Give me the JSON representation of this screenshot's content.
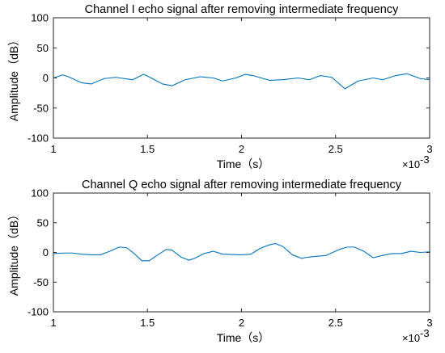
{
  "chart_data": [
    {
      "type": "line",
      "title": "Channel I echo signal after removing intermediate frequency",
      "xlabel": "Time（s）",
      "ylabel": "Amplitude（dB）",
      "x_exponent_label": "×10",
      "x_exponent_power": "-3",
      "xlim": [
        1,
        3
      ],
      "ylim": [
        -100,
        100
      ],
      "xticks": [
        1,
        1.5,
        2,
        2.5,
        3
      ],
      "xtick_labels": [
        "1",
        "1.5",
        "2",
        "2.5",
        "3"
      ],
      "yticks": [
        100,
        50,
        0,
        -50,
        -100
      ],
      "ytick_labels": [
        "100",
        "50",
        "0",
        "-50",
        "-100"
      ],
      "grid": false,
      "color": "#0072BD",
      "series": [
        {
          "x": [
            1.0,
            1.05,
            1.08,
            1.15,
            1.2,
            1.27,
            1.33,
            1.42,
            1.48,
            1.52,
            1.58,
            1.63,
            1.7,
            1.78,
            1.85,
            1.9,
            1.97,
            2.02,
            2.06,
            2.15,
            2.22,
            2.3,
            2.36,
            2.42,
            2.48,
            2.55,
            2.62,
            2.7,
            2.75,
            2.82,
            2.88,
            2.95,
            3.0
          ],
          "y": [
            0,
            5,
            2,
            -8,
            -10,
            -1,
            1,
            -3,
            6,
            0,
            -10,
            -13,
            -3,
            2,
            0,
            -5,
            0,
            6,
            4,
            -4,
            -3,
            0,
            -3,
            4,
            1,
            -18,
            -5,
            0,
            -3,
            4,
            7,
            -1,
            -3
          ]
        }
      ]
    },
    {
      "type": "line",
      "title": "Channel Q echo signal after removing intermediate frequency",
      "xlabel": "Time（s）",
      "ylabel": "Amplitude（dB）",
      "x_exponent_label": "×10",
      "x_exponent_power": "-3",
      "xlim": [
        1,
        3
      ],
      "ylim": [
        -100,
        100
      ],
      "xticks": [
        1,
        1.5,
        2,
        2.5,
        3
      ],
      "xtick_labels": [
        "1",
        "1.5",
        "2",
        "2.5",
        "3"
      ],
      "yticks": [
        100,
        50,
        0,
        -50,
        -100
      ],
      "ytick_labels": [
        "100",
        "50",
        "0",
        "-50",
        "-100"
      ],
      "grid": false,
      "color": "#0072BD",
      "series": [
        {
          "x": [
            1.0,
            1.05,
            1.1,
            1.15,
            1.2,
            1.25,
            1.3,
            1.35,
            1.39,
            1.43,
            1.47,
            1.51,
            1.55,
            1.6,
            1.63,
            1.68,
            1.72,
            1.75,
            1.8,
            1.85,
            1.9,
            2.0,
            2.05,
            2.1,
            2.15,
            2.18,
            2.22,
            2.27,
            2.32,
            2.35,
            2.45,
            2.52,
            2.56,
            2.6,
            2.65,
            2.7,
            2.75,
            2.8,
            2.85,
            2.9,
            2.95,
            3.0
          ],
          "y": [
            -2,
            -1,
            -1,
            -3,
            -4,
            -4,
            2,
            9,
            8,
            -2,
            -14,
            -14,
            -5,
            5,
            4,
            -8,
            -13,
            -10,
            -2,
            2,
            -3,
            -4,
            -3,
            7,
            13,
            15,
            10,
            -4,
            -10,
            -8,
            -5,
            5,
            9,
            9,
            2,
            -9,
            -5,
            -2,
            -2,
            2,
            0,
            1
          ]
        }
      ]
    }
  ]
}
